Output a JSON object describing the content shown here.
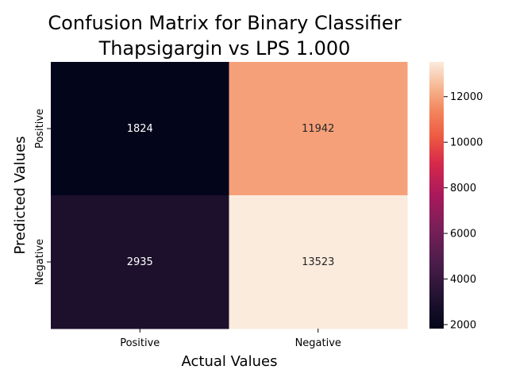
{
  "chart_data": {
    "type": "heatmap",
    "title": "Confusion Matrix for Binary Classifier\nThapsigargin vs LPS 1.000",
    "xlabel": "Actual Values",
    "ylabel": "Predicted Values",
    "x_categories": [
      "Positive",
      "Negative"
    ],
    "y_categories": [
      "Positive",
      "Negative"
    ],
    "values": [
      [
        1824,
        11942
      ],
      [
        2935,
        13523
      ]
    ],
    "colorbar": {
      "min": 1824,
      "max": 13523,
      "ticks": [
        2000,
        4000,
        6000,
        8000,
        10000,
        12000
      ],
      "colormap": "rocket"
    },
    "grid": false,
    "legend": "colorbar-right"
  }
}
